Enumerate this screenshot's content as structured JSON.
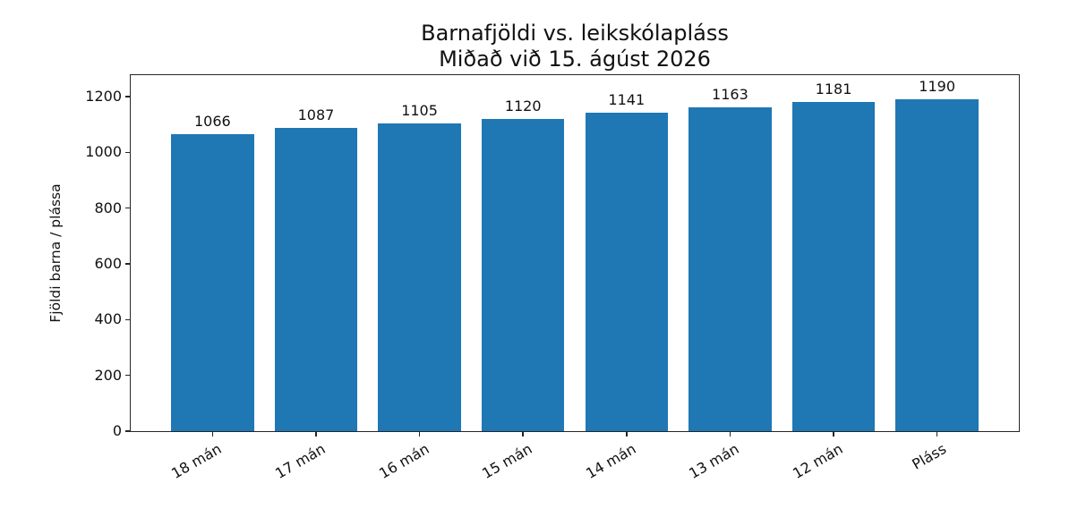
{
  "chart_data": {
    "type": "bar",
    "title": "Barnafjöldi vs. leikskólapláss",
    "subtitle": "Miðað við 15. ágúst 2026",
    "categories": [
      "18 mán",
      "17 mán",
      "16 mán",
      "15 mán",
      "14 mán",
      "13 mán",
      "12 mán",
      "Pláss"
    ],
    "values": [
      1066,
      1087,
      1105,
      1120,
      1141,
      1163,
      1181,
      1190
    ],
    "bar_value_labels": [
      "1066",
      "1087",
      "1105",
      "1120",
      "1141",
      "1163",
      "1181",
      "1190"
    ],
    "xlabel": "",
    "ylabel": "Fjöldi barna / plássa",
    "yticks": [
      0,
      200,
      400,
      600,
      800,
      1000,
      1200
    ],
    "ylim": [
      0,
      1277
    ],
    "xtick_rotation_deg": 30,
    "bar_color": "#1f77b4",
    "grid": false,
    "legend": null
  }
}
